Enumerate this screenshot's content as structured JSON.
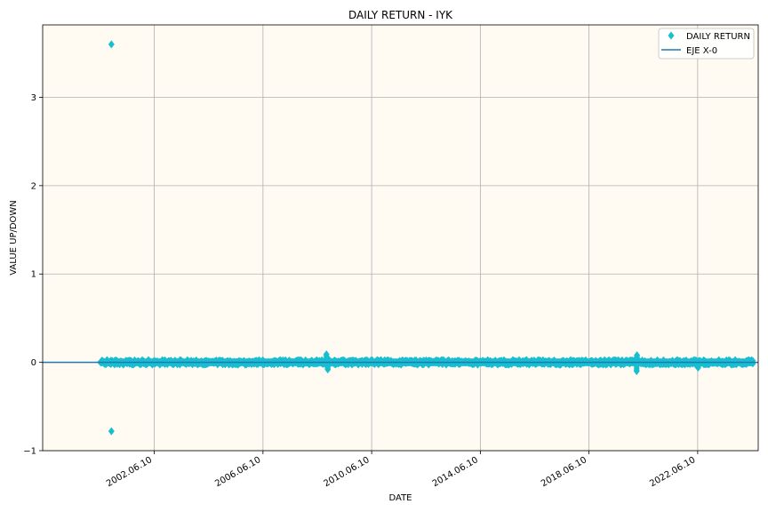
{
  "chart_data": {
    "type": "scatter",
    "title": "DAILY RETURN - IYK",
    "xlabel": "DATE",
    "ylabel": "VALUE UP/DOWN",
    "x_tick_labels": [
      "2002.06.10",
      "2006.06.10",
      "2010.06.10",
      "2014.06.10",
      "2018.06.10",
      "2022.06.10"
    ],
    "y_tick_labels": [
      "−1",
      "0",
      "1",
      "2",
      "3"
    ],
    "x_ticks": [
      "2002-06-10",
      "2006-06-10",
      "2010-06-10",
      "2014-06-10",
      "2018-06-10",
      "2022-06-10"
    ],
    "y_ticks": [
      -1,
      0,
      1,
      2,
      3
    ],
    "xlim": [
      "1998-05-01",
      "2024-09-01"
    ],
    "ylim": [
      -1.0,
      3.82
    ],
    "grid": true,
    "legend_position": "top-right",
    "background_color": "#fffbf3",
    "series": [
      {
        "name": "DAILY RETURN",
        "marker": "diamond",
        "color": "#17becf",
        "data_range": [
          "2000-06-20",
          "2024-06-20"
        ],
        "typical_band": [
          -0.03,
          0.03
        ],
        "outliers": [
          {
            "x": "2000-11-10",
            "y": 3.6
          },
          {
            "x": "2000-11-10",
            "y": -0.78
          }
        ],
        "spikes": [
          {
            "x": "2008-10-10",
            "y": 0.09
          },
          {
            "x": "2008-10-28",
            "y": -0.08
          },
          {
            "x": "2020-03-16",
            "y": 0.08
          },
          {
            "x": "2020-03-12",
            "y": -0.1
          },
          {
            "x": "2022-06-15",
            "y": -0.06
          }
        ]
      },
      {
        "name": "EJE X-0",
        "type": "hline",
        "y": 0,
        "color": "#1f77b4"
      }
    ]
  }
}
